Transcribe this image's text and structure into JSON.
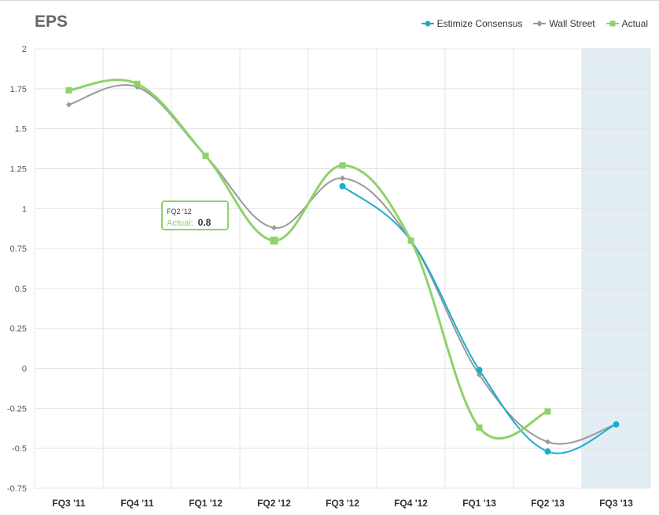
{
  "chart_data": {
    "type": "line",
    "title": "EPS",
    "categories": [
      "FQ3 '11",
      "FQ4 '11",
      "FQ1 '12",
      "FQ2 '12",
      "FQ3 '12",
      "FQ4 '12",
      "FQ1 '13",
      "FQ2 '13",
      "FQ3 '13"
    ],
    "y_ticks": [
      "2",
      "1.75",
      "1.5",
      "1.25",
      "1",
      "0.75",
      "0.5",
      "0.25",
      "0",
      "-0.25",
      "-0.5",
      "-0.75"
    ],
    "ylim": [
      -0.75,
      2
    ],
    "grid": true,
    "legend_position": "top-right",
    "highlighted_category": "FQ3 '13",
    "series": [
      {
        "name": "Estimize Consensus",
        "color": "#1aadce",
        "marker": "circle",
        "values": [
          null,
          null,
          null,
          null,
          1.14,
          0.8,
          -0.01,
          -0.52,
          -0.35
        ]
      },
      {
        "name": "Wall Street",
        "color": "#999999",
        "marker": "diamond",
        "values": [
          1.65,
          1.76,
          1.33,
          0.88,
          1.19,
          0.8,
          -0.04,
          -0.46,
          -0.35
        ]
      },
      {
        "name": "Actual",
        "color": "#8fd26b",
        "marker": "square",
        "values": [
          1.74,
          1.78,
          1.33,
          0.8,
          1.27,
          0.8,
          -0.37,
          -0.27,
          null
        ]
      }
    ]
  },
  "tooltip": {
    "category": "FQ2 '12",
    "label": "Actual",
    "separator": ":",
    "value": "0.8"
  }
}
